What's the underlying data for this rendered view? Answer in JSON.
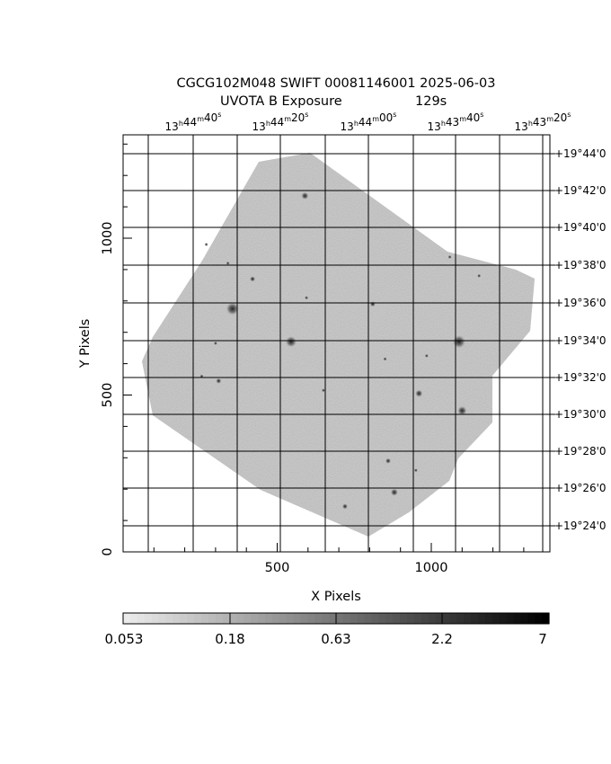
{
  "title": {
    "line1": "CGCG102M048 SWIFT 00081146001 2025-06-03",
    "line2_left": "UVOTA B Exposure",
    "line2_right": "129s"
  },
  "axes": {
    "xlabel": "X Pixels",
    "ylabel": "Y Pixels",
    "x_ticks": [
      "500",
      "1000"
    ],
    "y_ticks": [
      "0",
      "500",
      "1000"
    ],
    "x_range": [
      0,
      1375
    ],
    "y_range": [
      0,
      1335
    ],
    "ra_ticks": [
      {
        "h": "13",
        "m": "44",
        "s": "40"
      },
      {
        "h": "13",
        "m": "44",
        "s": "20"
      },
      {
        "h": "13",
        "m": "44",
        "s": "00"
      },
      {
        "h": "13",
        "m": "43",
        "s": "40"
      },
      {
        "h": "13",
        "m": "43",
        "s": "20"
      }
    ],
    "dec_ticks": [
      "+19°44'0",
      "+19°42'0",
      "+19°40'0",
      "+19°38'0",
      "+19°36'0",
      "+19°34'0",
      "+19°32'0",
      "+19°30'0",
      "+19°28'0",
      "+19°26'0",
      "+19°24'0"
    ]
  },
  "colorbar": {
    "labels": [
      "0.053",
      "0.18",
      "0.63",
      "2.2",
      "7"
    ],
    "scale": "log",
    "range": [
      0.053,
      7
    ]
  },
  "image": {
    "type": "grayscale sky exposure",
    "background": "#ffffff",
    "field_color": "#a8a8a8",
    "grid": true,
    "sources": [
      {
        "x": 590,
        "y": 1135,
        "r": 4
      },
      {
        "x": 355,
        "y": 775,
        "r": 7
      },
      {
        "x": 545,
        "y": 670,
        "r": 6
      },
      {
        "x": 1090,
        "y": 670,
        "r": 7
      },
      {
        "x": 1100,
        "y": 450,
        "r": 5
      },
      {
        "x": 960,
        "y": 505,
        "r": 4
      },
      {
        "x": 880,
        "y": 190,
        "r": 4
      },
      {
        "x": 860,
        "y": 290,
        "r": 3
      },
      {
        "x": 310,
        "y": 545,
        "r": 3
      },
      {
        "x": 720,
        "y": 145,
        "r": 3
      },
      {
        "x": 420,
        "y": 870,
        "r": 3
      },
      {
        "x": 810,
        "y": 790,
        "r": 3
      },
      {
        "x": 340,
        "y": 920,
        "r": 2
      },
      {
        "x": 650,
        "y": 515,
        "r": 2
      },
      {
        "x": 1155,
        "y": 880,
        "r": 2
      },
      {
        "x": 1060,
        "y": 940,
        "r": 2
      },
      {
        "x": 300,
        "y": 665,
        "r": 2
      },
      {
        "x": 255,
        "y": 560,
        "r": 2
      },
      {
        "x": 270,
        "y": 980,
        "r": 2
      },
      {
        "x": 595,
        "y": 810,
        "r": 2
      },
      {
        "x": 985,
        "y": 625,
        "r": 2
      },
      {
        "x": 850,
        "y": 615,
        "r": 2
      },
      {
        "x": 950,
        "y": 260,
        "r": 2
      }
    ]
  }
}
